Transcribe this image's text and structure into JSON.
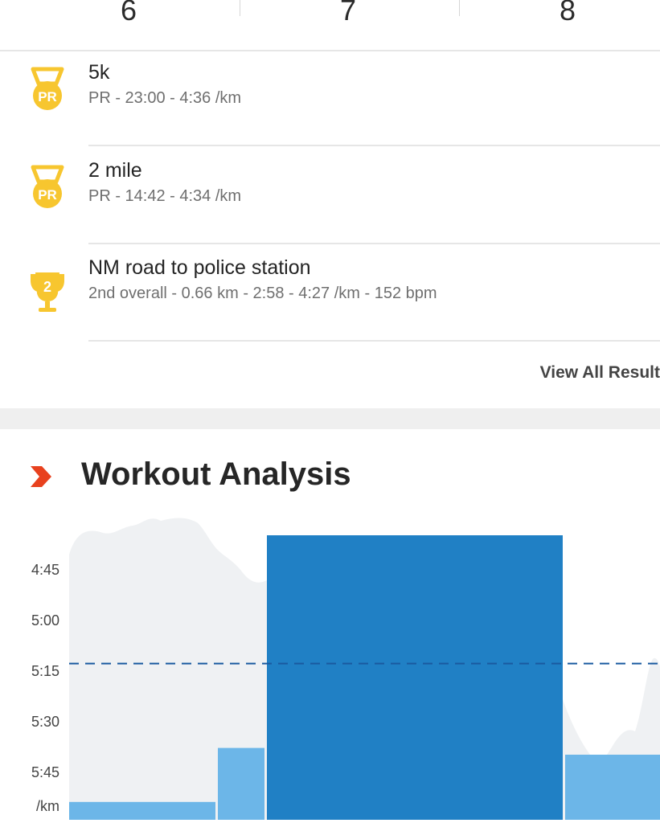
{
  "splits": [
    "6",
    "7",
    "8"
  ],
  "achievements": [
    {
      "icon": "pr-medal-icon",
      "title": "5k",
      "subtitle": "PR - 23:00 - 4:36 /km"
    },
    {
      "icon": "pr-medal-icon",
      "title": "2 mile",
      "subtitle": "PR - 14:42 - 4:34 /km"
    },
    {
      "icon": "trophy-icon",
      "badge": "2",
      "title": "NM road to police station",
      "subtitle": "2nd overall - 0.66 km - 2:58 - 4:27 /km - 152 bpm"
    }
  ],
  "pr_badge_text": "PR",
  "view_all_label": "View All Result",
  "workout": {
    "title": "Workout Analysis",
    "accent": "#e8411e"
  },
  "colors": {
    "medal": "#f7c62f",
    "bar_light": "#6cb6e8",
    "bar_dark": "#1479c2",
    "bg_area": "#eff1f3",
    "avg_line": "#1a5aa0"
  },
  "chart_data": {
    "type": "bar",
    "y_ticks": [
      "4:45",
      "5:00",
      "5:15",
      "5:30",
      "5:45"
    ],
    "y_unit": "/km",
    "y_axis_inverted": true,
    "average_pace_line": "5:13",
    "bars": [
      {
        "pace": "5:54"
      },
      {
        "pace": "5:38"
      },
      {
        "pace": "4:35",
        "highlighted": true
      },
      {
        "pace": "5:40"
      }
    ],
    "background": "pace-trace area"
  }
}
